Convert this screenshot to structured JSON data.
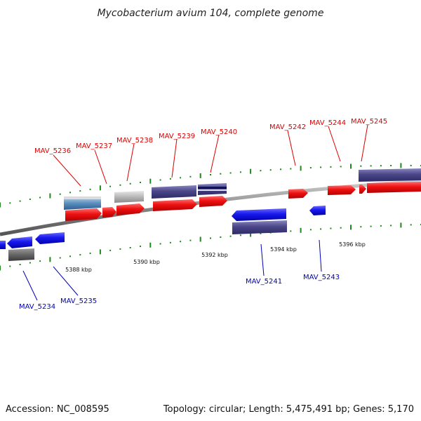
{
  "title": "Mycobacterium avium 104, complete genome",
  "footer": {
    "accession": "Accession: NC_008595",
    "summary": "Topology: circular; Length: 5,475,491 bp; Genes: 5,170"
  },
  "colors": {
    "forward": "#ee1111",
    "reverse": "#1818ee",
    "pseudo": "#4a4688",
    "gray": "#b8b8b8",
    "steel": "#5a8fbf",
    "dark": "#666666",
    "tick": "#1b8a1b",
    "top_label": "#dd0000",
    "bottom_label": "#0000bb",
    "backbone": "#888888"
  },
  "kbp_ticks": [
    {
      "label": "5388 kbp"
    },
    {
      "label": "5390 kbp"
    },
    {
      "label": "5392 kbp"
    },
    {
      "label": "5394 kbp"
    },
    {
      "label": "5396 kbp"
    }
  ],
  "genes": [
    {
      "name": "MAV_5234",
      "side": "bottom"
    },
    {
      "name": "MAV_5235",
      "side": "bottom"
    },
    {
      "name": "MAV_5236",
      "side": "top"
    },
    {
      "name": "MAV_5237",
      "side": "top"
    },
    {
      "name": "MAV_5238",
      "side": "top"
    },
    {
      "name": "MAV_5239",
      "side": "top"
    },
    {
      "name": "MAV_5240",
      "side": "top"
    },
    {
      "name": "MAV_5241",
      "side": "bottom"
    },
    {
      "name": "MAV_5242",
      "side": "top"
    },
    {
      "name": "MAV_5243",
      "side": "bottom"
    },
    {
      "name": "MAV_5244",
      "side": "top"
    },
    {
      "name": "MAV_5245",
      "side": "top"
    }
  ]
}
